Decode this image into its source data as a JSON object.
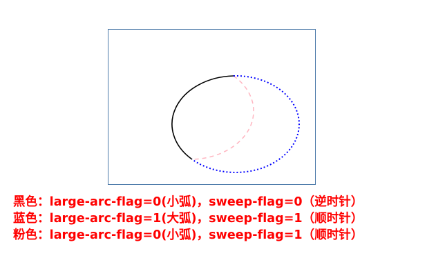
{
  "colors": {
    "frame": "#4a78a8",
    "black_arc": "#000000",
    "blue_arc": "#0000ff",
    "pink_arc": "#ffb6c1",
    "legend_text": "#ff0000"
  },
  "diagram": {
    "arcs": [
      {
        "name": "black-arc",
        "large_arc_flag": 0,
        "sweep_flag": 0,
        "style": "solid"
      },
      {
        "name": "blue-arc",
        "large_arc_flag": 1,
        "sweep_flag": 1,
        "style": "dotted"
      },
      {
        "name": "pink-arc",
        "large_arc_flag": 0,
        "sweep_flag": 1,
        "style": "dashed"
      }
    ]
  },
  "legend": {
    "items": [
      "黑色：large-arc-flag=0(小弧)，sweep-flag=0（逆时针）",
      "蓝色：large-arc-flag=1(大弧)，sweep-flag=1（顺时针）",
      "粉色：large-arc-flag=0(小弧)，sweep-flag=1（顺时针）"
    ]
  }
}
